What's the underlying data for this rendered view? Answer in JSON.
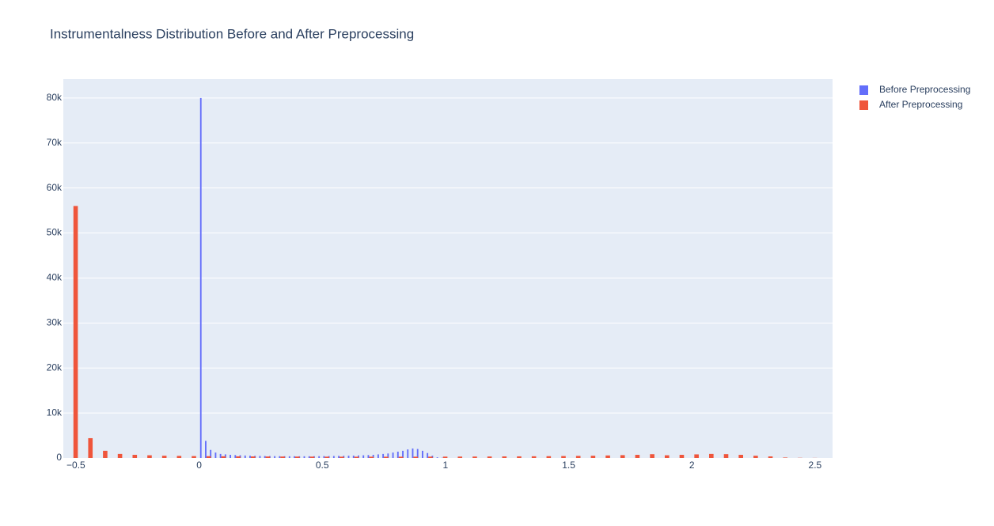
{
  "chart_data": {
    "type": "histogram",
    "title": "Instrumentalness Distribution Before and After Preprocessing",
    "series": [
      {
        "name": "Before Preprocessing",
        "color": "#636efa",
        "bins": [
          0,
          0.02,
          0.04,
          0.06,
          0.08,
          0.1,
          0.12,
          0.14,
          0.16,
          0.18,
          0.2,
          0.22,
          0.24,
          0.26,
          0.28,
          0.3,
          0.32,
          0.34,
          0.36,
          0.38,
          0.4,
          0.42,
          0.44,
          0.46,
          0.48,
          0.5,
          0.52,
          0.54,
          0.56,
          0.58,
          0.6,
          0.62,
          0.64,
          0.66,
          0.68,
          0.7,
          0.72,
          0.74,
          0.76,
          0.78,
          0.8,
          0.82,
          0.84,
          0.86,
          0.88,
          0.9,
          0.92,
          0.94,
          0.96,
          0.98,
          1
        ],
        "values": [
          80000,
          3800,
          1800,
          1200,
          900,
          800,
          700,
          650,
          600,
          550,
          500,
          480,
          450,
          430,
          420,
          410,
          400,
          390,
          380,
          380,
          380,
          380,
          380,
          390,
          400,
          410,
          420,
          440,
          460,
          480,
          500,
          520,
          560,
          600,
          650,
          700,
          800,
          900,
          1000,
          1200,
          1400,
          1600,
          1900,
          2100,
          2000,
          1600,
          1100,
          500,
          150,
          50
        ]
      },
      {
        "name": "After Preprocessing",
        "color": "#ef553b",
        "bins": [
          -0.54,
          -0.48,
          -0.42,
          -0.36,
          -0.3,
          -0.24,
          -0.18,
          -0.12,
          -0.06,
          0,
          0.06,
          0.12,
          0.18,
          0.24,
          0.3,
          0.36,
          0.42,
          0.48,
          0.54,
          0.6,
          0.66,
          0.72,
          0.78,
          0.84,
          0.9,
          0.96,
          1.02,
          1.08,
          1.14,
          1.2,
          1.26,
          1.32,
          1.38,
          1.44,
          1.5,
          1.56,
          1.62,
          1.68,
          1.74,
          1.8,
          1.86,
          1.92,
          1.98,
          2.04,
          2.1,
          2.16,
          2.22,
          2.28,
          2.34,
          2.4,
          2.46,
          2.52
        ],
        "values": [
          56000,
          4400,
          1600,
          900,
          700,
          600,
          500,
          460,
          420,
          400,
          380,
          360,
          340,
          330,
          320,
          310,
          300,
          290,
          280,
          280,
          280,
          280,
          280,
          290,
          300,
          300,
          310,
          320,
          330,
          350,
          360,
          380,
          400,
          430,
          460,
          500,
          560,
          630,
          700,
          840,
          600,
          700,
          800,
          900,
          850,
          700,
          500,
          350,
          100,
          40,
          20
        ]
      }
    ],
    "xlim": [
      -0.551,
      2.571
    ],
    "xticks": [
      {
        "value": -0.5,
        "label": "−0.5"
      },
      0,
      0.5,
      1,
      1.5,
      2,
      2.5
    ],
    "ylim": [
      0,
      84200
    ],
    "yticks": [
      0,
      {
        "value": 10000,
        "label": "10k"
      },
      {
        "value": 20000,
        "label": "20k"
      },
      {
        "value": 30000,
        "label": "30k"
      },
      {
        "value": 40000,
        "label": "40k"
      },
      {
        "value": 50000,
        "label": "50k"
      },
      {
        "value": 60000,
        "label": "60k"
      },
      {
        "value": 70000,
        "label": "70k"
      },
      {
        "value": 80000,
        "label": "80k"
      }
    ],
    "grid": true
  }
}
